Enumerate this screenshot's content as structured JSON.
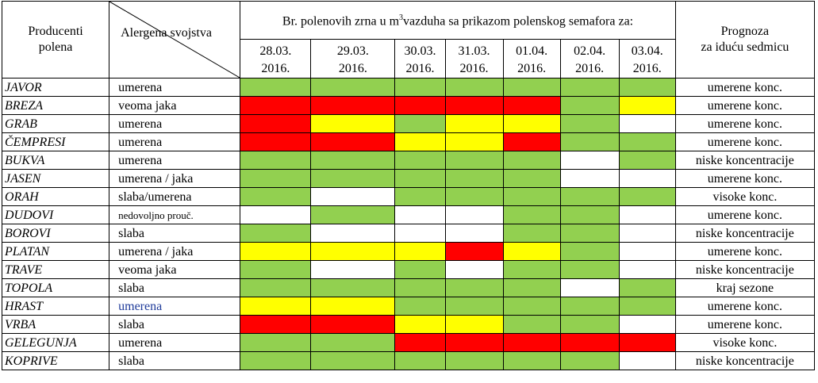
{
  "header": {
    "producers_label_line1": "Producenti",
    "producers_label_line2": "polena",
    "allergen_label": "Alergena svojstva",
    "pollen_count_label_part1": "Br. polenovih zrna u m",
    "pollen_count_label_sup": "3",
    "pollen_count_label_part2": "vazduha sa prikazom polenskog semafora za:",
    "forecast_label_line1": "Prognoza",
    "forecast_label_line2": "za iduću sedmicu",
    "dates": [
      {
        "day": "28.03.",
        "year": "2016."
      },
      {
        "day": "29.03.",
        "year": "2016."
      },
      {
        "day": "30.03.",
        "year": "2016."
      },
      {
        "day": "31.03.",
        "year": "2016."
      },
      {
        "day": "01.04.",
        "year": "2016."
      },
      {
        "day": "02.04.",
        "year": "2016."
      },
      {
        "day": "03.04.",
        "year": "2016."
      }
    ]
  },
  "colors": {
    "green": "#92d050",
    "red": "#ff0000",
    "yellow": "#ffff00",
    "white": "#ffffff"
  },
  "rows": [
    {
      "plant": "JAVOR",
      "allergen": "umerena",
      "levels": [
        "g",
        "g",
        "g",
        "g",
        "g",
        "g",
        "g"
      ],
      "forecast": "umerene konc."
    },
    {
      "plant": "BREZA",
      "allergen": "veoma jaka",
      "levels": [
        "r",
        "r",
        "r",
        "r",
        "r",
        "g",
        "y"
      ],
      "forecast": "umerene konc."
    },
    {
      "plant": "GRAB",
      "allergen": "umerena",
      "levels": [
        "r",
        "y",
        "g",
        "y",
        "y",
        "g",
        "w"
      ],
      "forecast": "umerene konc."
    },
    {
      "plant": "ČEMPRESI",
      "allergen": "umerena",
      "levels": [
        "r",
        "r",
        "y",
        "y",
        "r",
        "g",
        "g"
      ],
      "forecast": "umerene konc."
    },
    {
      "plant": "BUKVA",
      "allergen": "umerena",
      "levels": [
        "g",
        "g",
        "g",
        "g",
        "g",
        "w",
        "g"
      ],
      "forecast": "niske koncentracije"
    },
    {
      "plant": "JASEN",
      "allergen": "umerena / jaka",
      "levels": [
        "g",
        "g",
        "g",
        "g",
        "g",
        "w",
        "w"
      ],
      "forecast": "umerene konc."
    },
    {
      "plant": "ORAH",
      "allergen": "slaba/umerena",
      "levels": [
        "g",
        "w",
        "g",
        "g",
        "g",
        "g",
        "g"
      ],
      "forecast": "visoke konc."
    },
    {
      "plant": "DUDOVI",
      "allergen": "nedovoljno prouč.",
      "levels": [
        "w",
        "g",
        "w",
        "w",
        "g",
        "g",
        "w"
      ],
      "forecast": "umerene konc."
    },
    {
      "plant": "BOROVI",
      "allergen": "slaba",
      "levels": [
        "g",
        "w",
        "w",
        "w",
        "g",
        "g",
        "w"
      ],
      "forecast": "niske koncentracije"
    },
    {
      "plant": "PLATAN",
      "allergen": "umerena / jaka",
      "levels": [
        "y",
        "y",
        "y",
        "r",
        "y",
        "g",
        "w"
      ],
      "forecast": "umerene konc."
    },
    {
      "plant": "TRAVE",
      "allergen": "veoma jaka",
      "levels": [
        "g",
        "w",
        "g",
        "w",
        "g",
        "g",
        "w"
      ],
      "forecast": "niske koncentracije"
    },
    {
      "plant": "TOPOLA",
      "allergen": "slaba",
      "levels": [
        "g",
        "g",
        "g",
        "g",
        "g",
        "w",
        "g"
      ],
      "forecast": "kraj sezone"
    },
    {
      "plant": "HRAST",
      "allergen": "umerena",
      "levels": [
        "y",
        "y",
        "g",
        "g",
        "g",
        "g",
        "g"
      ],
      "forecast": "umerene konc."
    },
    {
      "plant": "VRBA",
      "allergen": "slaba",
      "levels": [
        "r",
        "r",
        "y",
        "y",
        "g",
        "g",
        "w"
      ],
      "forecast": "umerene konc."
    },
    {
      "plant": "GELEGUNJA",
      "allergen": "umerena",
      "levels": [
        "g",
        "g",
        "r",
        "r",
        "r",
        "r",
        "r"
      ],
      "forecast": "visoke konc."
    },
    {
      "plant": "KOPRIVE",
      "allergen": "slaba",
      "levels": [
        "g",
        "g",
        "g",
        "g",
        "g",
        "g",
        "w"
      ],
      "forecast": "niske koncentracije"
    }
  ]
}
